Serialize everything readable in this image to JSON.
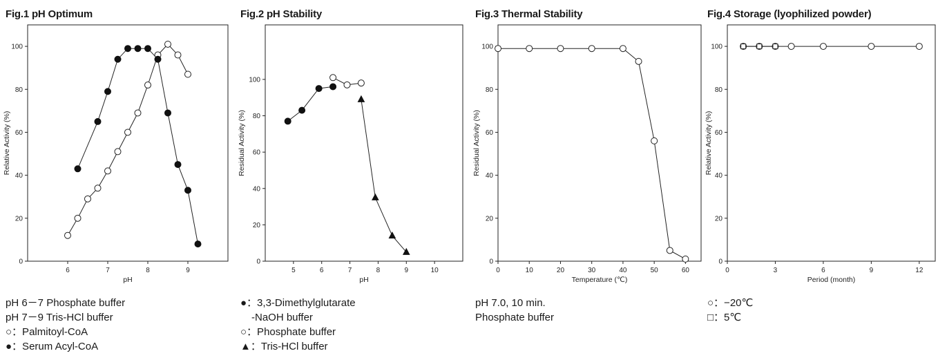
{
  "chart_data": [
    {
      "type": "line",
      "title": "Fig.1 pH Optimum",
      "xlabel": "pH",
      "ylabel": "Relative Activity (%)",
      "xlim": [
        5,
        10
      ],
      "ylim": [
        0,
        110
      ],
      "xticks": [
        6,
        7,
        8,
        9
      ],
      "yticks": [
        0,
        20,
        40,
        60,
        80,
        100
      ],
      "series": [
        {
          "marker": "open-circle",
          "x": [
            6.0,
            6.25,
            6.5,
            6.75,
            7.0,
            7.25,
            7.5,
            7.75,
            8.0,
            8.25,
            8.5,
            8.75,
            9.0
          ],
          "y": [
            12,
            20,
            29,
            34,
            42,
            51,
            60,
            69,
            82,
            96,
            101,
            96,
            87
          ]
        },
        {
          "marker": "filled-circle",
          "x": [
            6.25,
            6.75,
            7.0,
            7.25,
            7.5,
            7.75,
            8.0,
            8.25,
            8.5,
            8.75,
            9.0,
            9.25
          ],
          "y": [
            43,
            65,
            79,
            94,
            99,
            99,
            99,
            94,
            69,
            45,
            33,
            8
          ]
        }
      ],
      "notes": [
        "pH 6－7 Phosphate buffer",
        "pH 7－9 Tris-HCl buffer",
        "○：Palmitoyl-CoA",
        "●：Serum Acyl-CoA"
      ]
    },
    {
      "type": "line",
      "title": "Fig.2 pH Stability",
      "xlabel": "pH",
      "ylabel": "Residual Activity (%)",
      "xlim": [
        4,
        11
      ],
      "ylim": [
        0,
        130
      ],
      "xticks": [
        5,
        6,
        7,
        8,
        9,
        10
      ],
      "yticks": [
        0,
        20,
        40,
        60,
        80,
        100
      ],
      "series": [
        {
          "marker": "filled-circle",
          "x": [
            4.8,
            5.3,
            5.9,
            6.4
          ],
          "y": [
            77,
            83,
            95,
            96
          ]
        },
        {
          "marker": "open-circle",
          "x": [
            6.4,
            6.9,
            7.4
          ],
          "y": [
            101,
            97,
            98
          ]
        },
        {
          "marker": "filled-triangle",
          "x": [
            7.4,
            7.9,
            8.5,
            9.0
          ],
          "y": [
            89,
            35,
            14,
            5
          ]
        }
      ],
      "notes": [
        "●：3,3-Dimethylglutarate",
        "-NaOH buffer",
        "○：Phosphate buffer",
        "▲：Tris-HCl buffer"
      ]
    },
    {
      "type": "line",
      "title": "Fig.3 Thermal Stability",
      "xlabel": "Temperature (℃)",
      "ylabel": "Residual Activity (%)",
      "xlim": [
        0,
        65
      ],
      "ylim": [
        0,
        110
      ],
      "xticks": [
        0,
        10,
        20,
        30,
        40,
        50,
        60
      ],
      "yticks": [
        0,
        20,
        40,
        60,
        80,
        100
      ],
      "series": [
        {
          "marker": "open-circle",
          "x": [
            0,
            10,
            20,
            30,
            40,
            45,
            50,
            55,
            60
          ],
          "y": [
            99,
            99,
            99,
            99,
            99,
            93,
            56,
            5,
            1
          ]
        }
      ],
      "notes": [
        "pH 7.0, 10 min.",
        "Phosphate buffer"
      ]
    },
    {
      "type": "line",
      "title": "Fig.4 Storage (lyophilized powder)",
      "xlabel": "Period (month)",
      "ylabel": "Relative Activity (%)",
      "xlim": [
        0,
        13
      ],
      "ylim": [
        0,
        110
      ],
      "xticks": [
        0,
        3,
        6,
        9,
        12
      ],
      "yticks": [
        0,
        20,
        40,
        60,
        80,
        100
      ],
      "series": [
        {
          "marker": "open-circle",
          "x": [
            1,
            2,
            3,
            4,
            6,
            9,
            12
          ],
          "y": [
            100,
            100,
            100,
            100,
            100,
            100,
            100
          ]
        },
        {
          "marker": "open-square",
          "x": [
            1,
            2,
            3
          ],
          "y": [
            100,
            100,
            100
          ]
        }
      ],
      "notes": [
        "○：−20℃",
        "□：5℃"
      ]
    }
  ]
}
